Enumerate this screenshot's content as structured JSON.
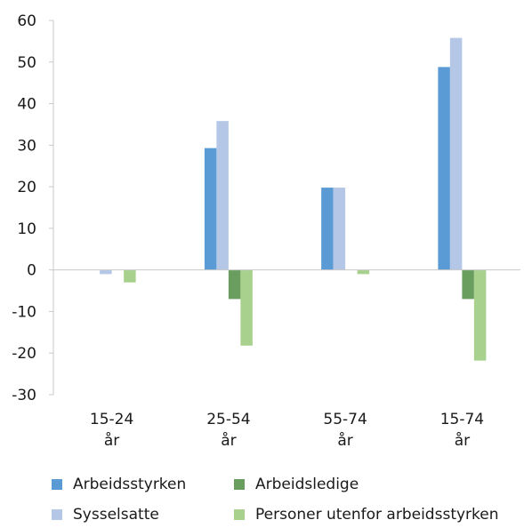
{
  "chart_data": {
    "type": "bar",
    "title": "",
    "xlabel": "",
    "ylabel": "",
    "ylim": [
      -30,
      60
    ],
    "yticks": [
      60,
      50,
      40,
      30,
      20,
      10,
      0,
      -10,
      -20,
      -30
    ],
    "grid": false,
    "legend_position": "bottom",
    "categories": [
      {
        "line1": "15-24",
        "line2": "år"
      },
      {
        "line1": "25-54",
        "line2": "år"
      },
      {
        "line1": "55-74",
        "line2": "år"
      },
      {
        "line1": "15-74",
        "line2": "år"
      }
    ],
    "series": [
      {
        "name": "Arbeidsstyrken",
        "color": "#5b9bd5",
        "values": [
          0,
          29.3,
          19.8,
          48.8
        ]
      },
      {
        "name": "Sysselsatte",
        "color": "#b4c7e7",
        "values": [
          -1,
          35.8,
          19.8,
          55.8
        ]
      },
      {
        "name": "Arbeidsledige",
        "color": "#6a9e5f",
        "values": [
          0,
          -7,
          0,
          -7
        ]
      },
      {
        "name": "Personer utenfor arbeidsstyrken",
        "color": "#a9d18e",
        "values": [
          -3,
          -18.2,
          -1,
          -21.8
        ]
      }
    ]
  }
}
